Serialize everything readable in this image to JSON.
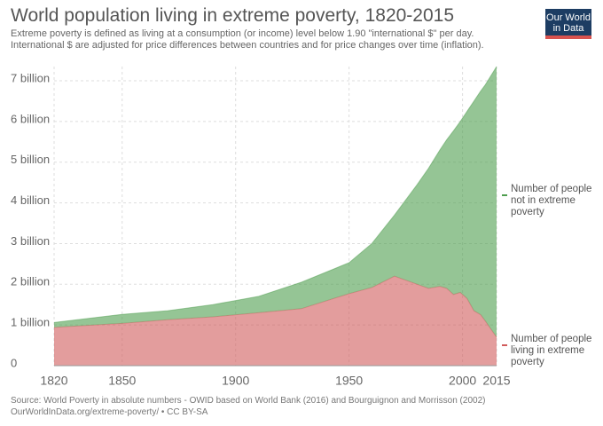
{
  "chart_data": {
    "type": "stacked-area",
    "title": "World population living in extreme poverty, 1820-2015",
    "subtitle": [
      "Extreme poverty is defined as living at a consumption (or income) level below 1.90 \"international $\" per day.",
      "International $ are adjusted for price differences between countries and for price changes over time (inflation)."
    ],
    "logo": "Our World in Data",
    "source": [
      "Source: World Poverty in absolute numbers - OWID based on World Bank (2016) and Bourguignon and Morrisson (2002)",
      "OurWorldInData.org/extreme-poverty/ • CC BY-SA"
    ],
    "x": [
      1820,
      1850,
      1870,
      1890,
      1910,
      1929,
      1950,
      1960,
      1970,
      1980,
      1985,
      1990,
      1993,
      1996,
      1999,
      2002,
      2005,
      2008,
      2010,
      2015
    ],
    "series": [
      {
        "name": "Number of people living in extreme poverty",
        "color": "#d15b5b",
        "values": [
          0.94,
          1.04,
          1.13,
          1.2,
          1.3,
          1.4,
          1.77,
          1.92,
          2.2,
          2.0,
          1.9,
          1.95,
          1.9,
          1.75,
          1.8,
          1.65,
          1.35,
          1.25,
          1.1,
          0.7
        ]
      },
      {
        "name": "Number of people not in extreme poverty",
        "color": "#4f9e4f",
        "values": [
          0.12,
          0.22,
          0.22,
          0.3,
          0.4,
          0.65,
          0.76,
          1.08,
          1.5,
          2.45,
          2.95,
          3.35,
          3.65,
          4.02,
          4.2,
          4.6,
          5.15,
          5.5,
          5.8,
          6.65
        ]
      }
    ],
    "xlim": [
      1820,
      2015
    ],
    "xticks": [
      1820,
      1850,
      1900,
      1950,
      2000,
      2015
    ],
    "ylim": [
      0,
      7.35
    ],
    "yticks": [
      0,
      {
        "value": 1,
        "label": "1 billion"
      },
      {
        "value": 2,
        "label": "2 billion"
      },
      {
        "value": 3,
        "label": "3 billion"
      },
      {
        "value": 4,
        "label": "4 billion"
      },
      {
        "value": 5,
        "label": "5 billion"
      },
      {
        "value": 6,
        "label": "6 billion"
      },
      {
        "value": 7,
        "label": "7 billion"
      }
    ],
    "grid": true
  }
}
